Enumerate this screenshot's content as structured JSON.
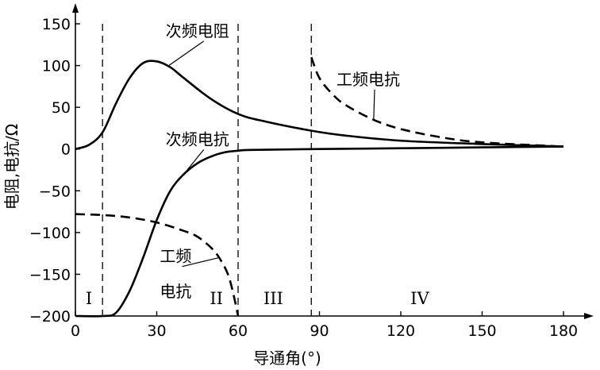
{
  "chart_data": {
    "type": "line",
    "title": "",
    "xlabel": "导通角(°)",
    "ylabel": "电阻,电抗/Ω",
    "xlim": [
      0,
      180
    ],
    "ylim": [
      -200,
      150
    ],
    "x_ticks": [
      0,
      30,
      60,
      90,
      120,
      150,
      180
    ],
    "y_ticks": [
      -200,
      -150,
      -100,
      -50,
      0,
      50,
      100,
      150
    ],
    "grid": false,
    "legend": "none",
    "vertical_dividers": [
      10,
      60,
      87
    ],
    "regions": [
      {
        "label": "I",
        "x": 5
      },
      {
        "label": "II",
        "x": 52
      },
      {
        "label": "III",
        "x": 73
      },
      {
        "label": "IV",
        "x": 127
      }
    ],
    "series": [
      {
        "name": "次频电阻",
        "style": "solid",
        "x": [
          0,
          5,
          10,
          15,
          20,
          25,
          30,
          35,
          40,
          50,
          60,
          70,
          87,
          100,
          120,
          150,
          180
        ],
        "y": [
          0,
          5,
          20,
          55,
          85,
          103,
          105,
          98,
          85,
          60,
          42,
          33,
          22,
          16,
          10,
          6,
          3
        ]
      },
      {
        "name": "次频电抗",
        "style": "solid",
        "x": [
          0,
          10,
          15,
          20,
          25,
          30,
          35,
          40,
          45,
          50,
          55,
          60,
          65,
          90,
          120,
          150,
          180
        ],
        "y": [
          -200,
          -200,
          -196,
          -170,
          -130,
          -85,
          -50,
          -30,
          -17,
          -9,
          -4,
          -2,
          -1,
          0,
          1,
          2,
          3
        ]
      },
      {
        "name": "工频电抗",
        "style": "dashed",
        "x": [
          0,
          10,
          20,
          30,
          40,
          45,
          50,
          53,
          56,
          58,
          60
        ],
        "y": [
          -78,
          -79,
          -82,
          -88,
          -98,
          -105,
          -118,
          -130,
          -148,
          -170,
          -200
        ]
      },
      {
        "name": "工频电抗",
        "style": "dashed",
        "x": [
          87,
          90,
          95,
          100,
          110,
          120,
          135,
          150,
          180
        ],
        "y": [
          110,
          85,
          65,
          52,
          35,
          24,
          14,
          8,
          3
        ]
      }
    ],
    "annotations": [
      {
        "text": "次频电阻",
        "x": 45,
        "y": 135,
        "points_to": [
          34,
          99
        ]
      },
      {
        "text": "次频电抗",
        "x": 45,
        "y": 5,
        "points_to": [
          40,
          -30
        ]
      },
      {
        "text": "工频电抗",
        "x": 108,
        "y": 77,
        "points_to": [
          110,
          35
        ]
      },
      {
        "text": "工频",
        "x": 37,
        "y": -135,
        "points_to": [
          53,
          -130
        ]
      },
      {
        "text": "电抗",
        "x": 37,
        "y": -177
      }
    ]
  }
}
